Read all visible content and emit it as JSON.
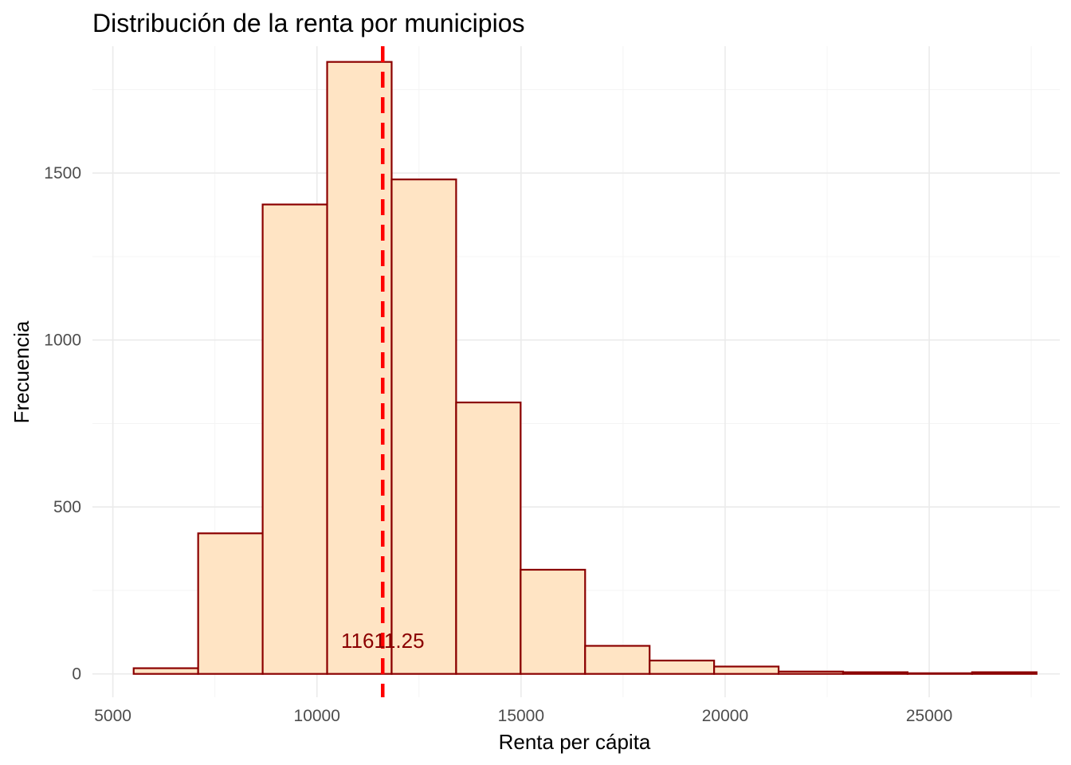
{
  "chart_data": {
    "type": "bar",
    "title": "Distribución de la renta por municipios",
    "xlabel": "Renta per cápita",
    "ylabel": "Frecuencia",
    "xlim": [
      4500,
      28200
    ],
    "ylim": [
      -70,
      1880
    ],
    "x_ticks": [
      5000,
      10000,
      15000,
      20000,
      25000
    ],
    "x_tick_labels": [
      "5000",
      "10000",
      "15000",
      "20000",
      "25000"
    ],
    "x_minor_ticks": [
      7500,
      12500,
      17500,
      22500,
      27500
    ],
    "y_ticks": [
      0,
      500,
      1000,
      1500
    ],
    "y_tick_labels": [
      "0",
      "500",
      "1000",
      "1500"
    ],
    "y_minor_ticks": [
      250,
      750,
      1250,
      1750
    ],
    "grid": true,
    "legend": "none",
    "bin_width": 1580,
    "bin_centers": [
      6300,
      7880,
      9460,
      11040,
      12620,
      14200,
      15780,
      17360,
      18940,
      20520,
      22100,
      23680,
      25260,
      26840
    ],
    "values": [
      17,
      421,
      1406,
      1833,
      1481,
      813,
      312,
      84,
      40,
      22,
      7,
      5,
      2,
      5
    ],
    "mean_value": 11611.25,
    "mean_label": "11611.25",
    "mean_label_y": 100,
    "colors": {
      "bar_fill": "#ffe4c4",
      "bar_outline": "#8b0000",
      "mean_line": "#ff0000",
      "annotation_text": "#8b0000"
    }
  }
}
